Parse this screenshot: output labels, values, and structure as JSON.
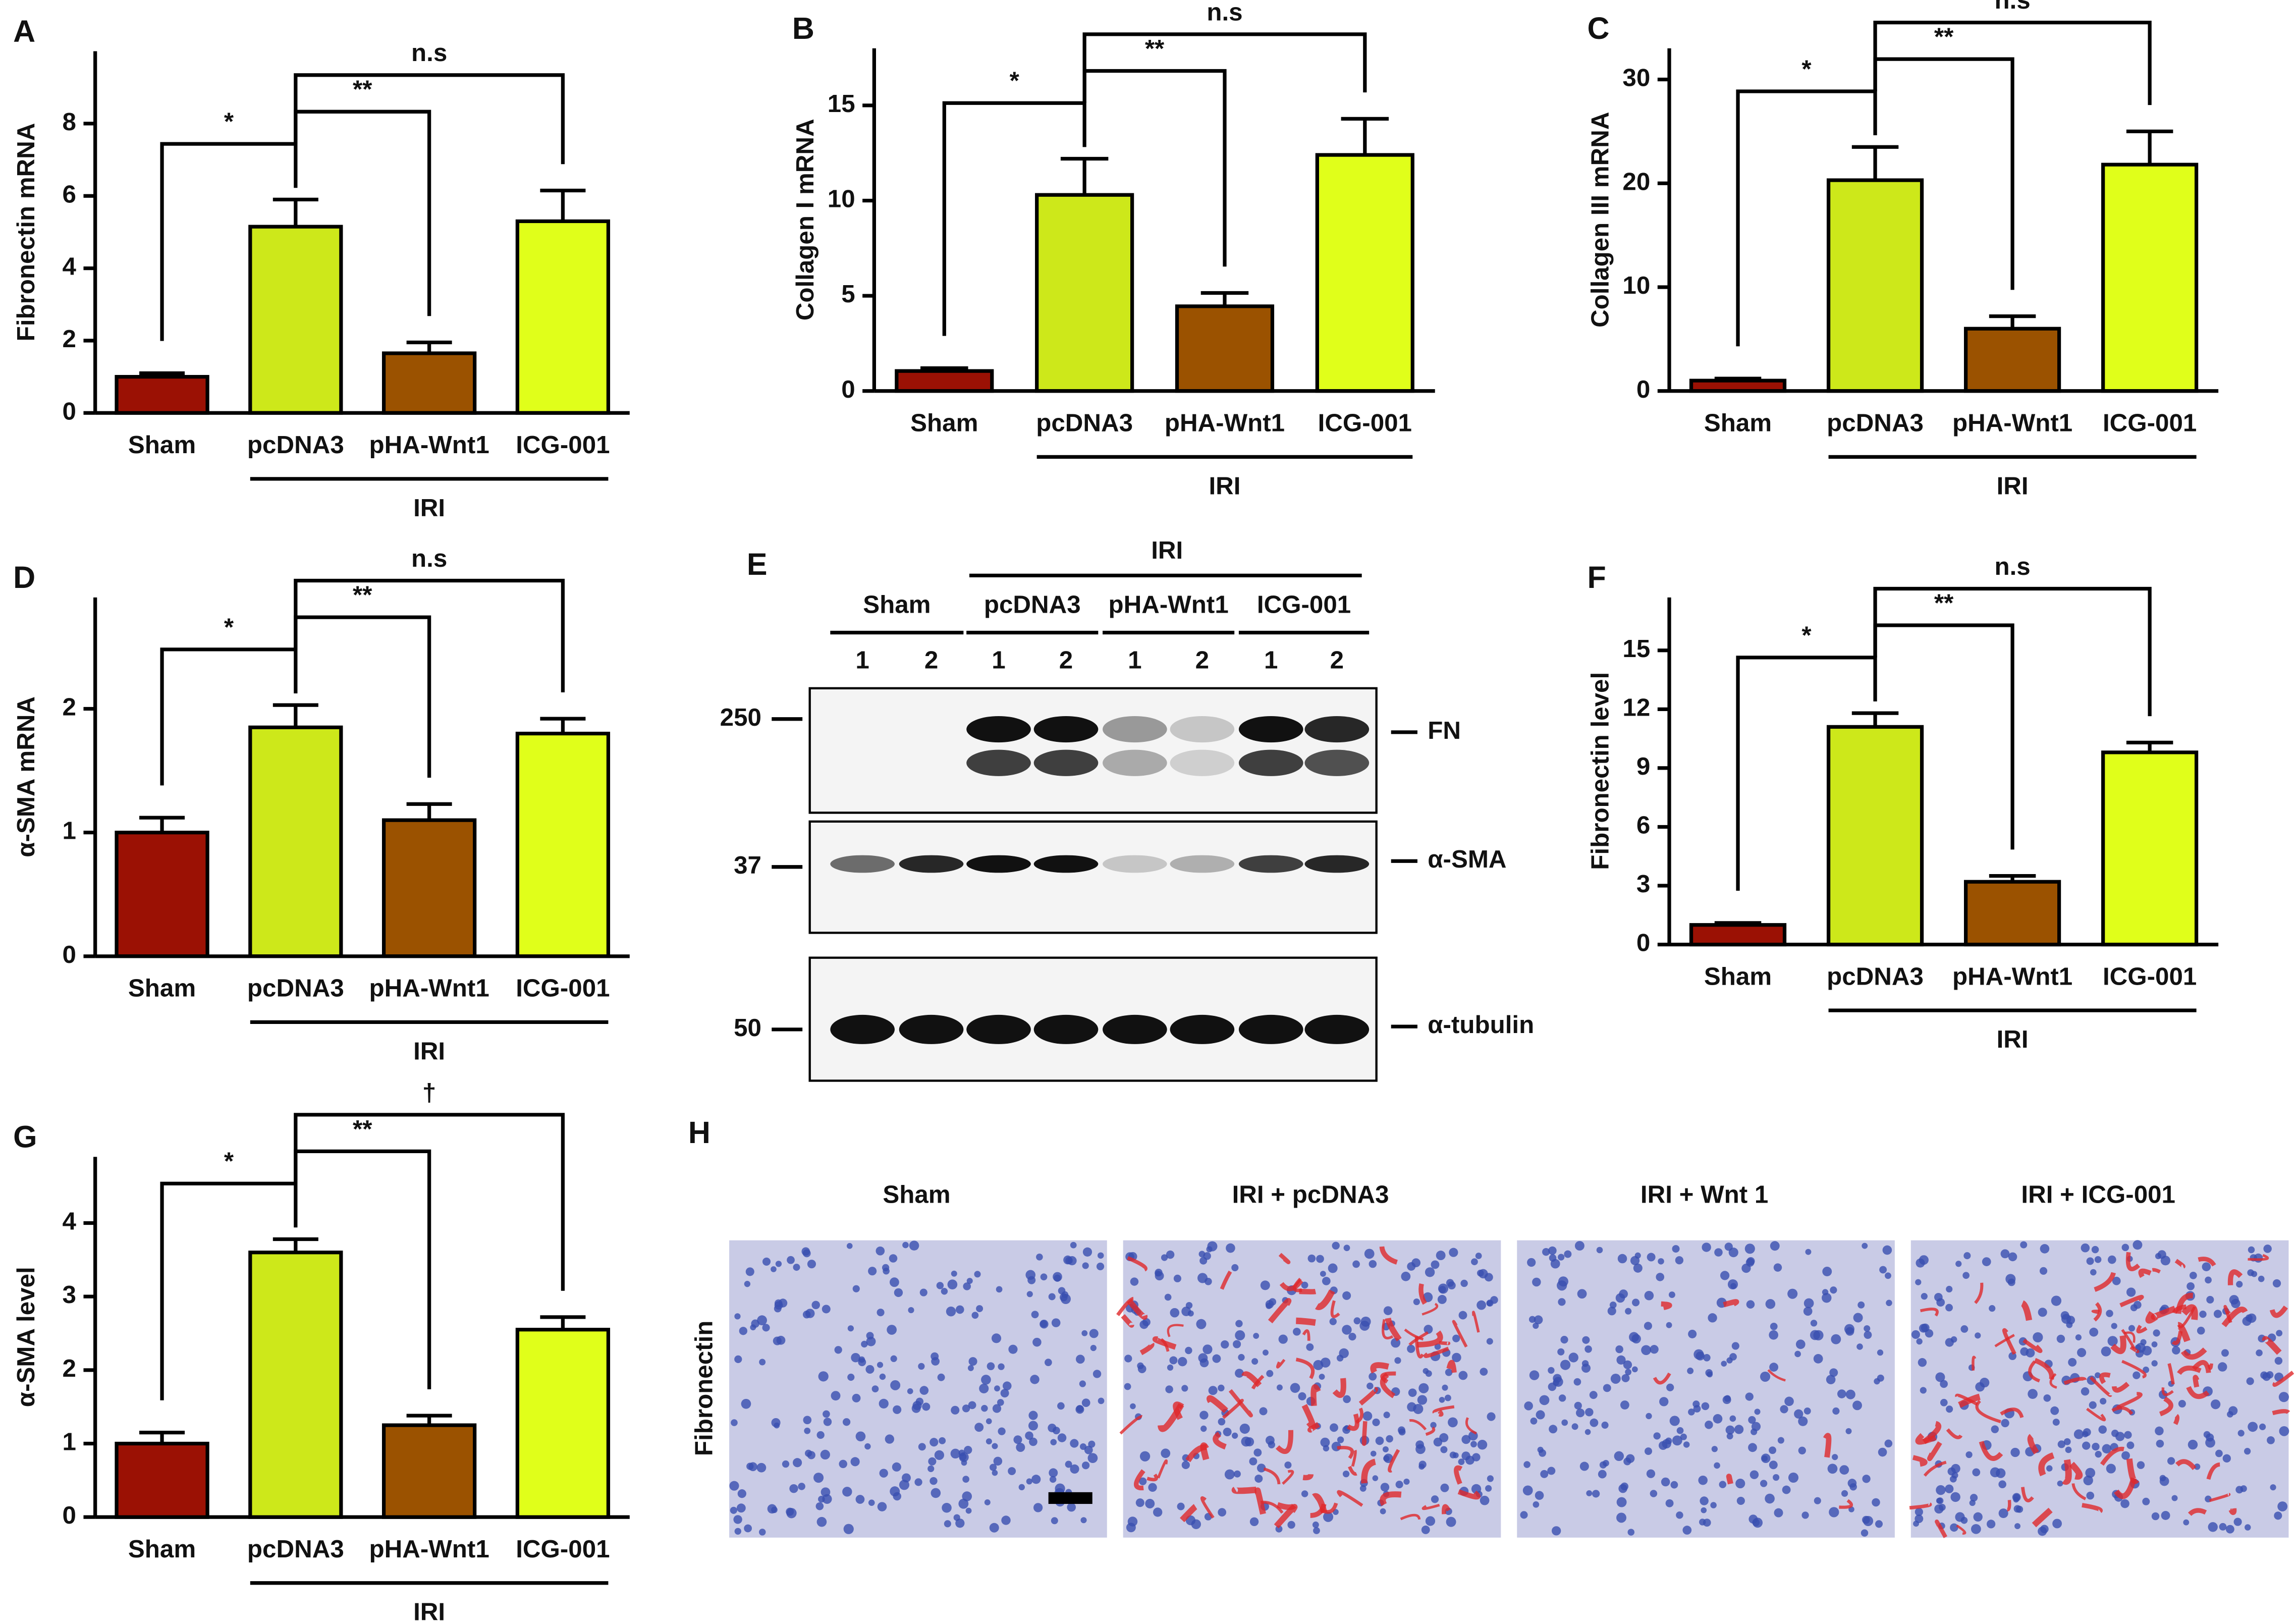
{
  "chart_data": [
    {
      "panel": "A",
      "type": "bar",
      "y_label": "Fibronectin mRNA",
      "categories": [
        "Sham",
        "pcDNA3",
        "pHA-Wnt1",
        "ICG-001"
      ],
      "group_label": "IRI",
      "values": [
        1.0,
        5.15,
        1.65,
        5.3
      ],
      "errors": [
        0.1,
        0.75,
        0.3,
        0.85
      ],
      "colors": [
        "#9b1104",
        "#cde81a",
        "#9b5200",
        "#e0ff1a"
      ],
      "ylim": [
        0,
        10
      ],
      "yticks": [
        0,
        2,
        4,
        6,
        8
      ],
      "significance": [
        "*",
        "**",
        "n.s"
      ]
    },
    {
      "panel": "B",
      "type": "bar",
      "y_label": "Collagen I mRNA",
      "categories": [
        "Sham",
        "pcDNA3",
        "pHA-Wnt1",
        "ICG-001"
      ],
      "group_label": "IRI",
      "values": [
        1.05,
        10.3,
        4.45,
        12.4
      ],
      "errors": [
        0.15,
        1.9,
        0.7,
        1.9
      ],
      "colors": [
        "#9b1104",
        "#cde81a",
        "#9b5200",
        "#e0ff1a"
      ],
      "ylim": [
        0,
        18
      ],
      "yticks": [
        0,
        5,
        10,
        15
      ],
      "significance": [
        "*",
        "**",
        "n.s"
      ]
    },
    {
      "panel": "C",
      "type": "bar",
      "y_label": "Collagen III mRNA",
      "categories": [
        "Sham",
        "pcDNA3",
        "pHA-Wnt1",
        "ICG-001"
      ],
      "group_label": "IRI",
      "values": [
        1.0,
        20.3,
        6.0,
        21.8
      ],
      "errors": [
        0.2,
        3.2,
        1.2,
        3.2
      ],
      "colors": [
        "#9b1104",
        "#cde81a",
        "#9b5200",
        "#e0ff1a"
      ],
      "ylim": [
        0,
        33
      ],
      "yticks": [
        0,
        10,
        20,
        30
      ],
      "significance": [
        "*",
        "**",
        "n.s"
      ]
    },
    {
      "panel": "D",
      "type": "bar",
      "y_label": "α-SMA mRNA",
      "categories": [
        "Sham",
        "pcDNA3",
        "pHA-Wnt1",
        "ICG-001"
      ],
      "group_label": "IRI",
      "values": [
        1.0,
        1.85,
        1.1,
        1.8
      ],
      "errors": [
        0.12,
        0.18,
        0.13,
        0.12
      ],
      "colors": [
        "#9b1104",
        "#cde81a",
        "#9b5200",
        "#e0ff1a"
      ],
      "ylim": [
        0,
        2.9
      ],
      "yticks": [
        0,
        1,
        2
      ],
      "significance": [
        "*",
        "**",
        "n.s"
      ]
    },
    {
      "panel": "F",
      "type": "bar",
      "y_label": "Fibronectin level",
      "categories": [
        "Sham",
        "pcDNA3",
        "pHA-Wnt1",
        "ICG-001"
      ],
      "group_label": "IRI",
      "values": [
        1.0,
        11.1,
        3.2,
        9.8
      ],
      "errors": [
        0.1,
        0.7,
        0.3,
        0.5
      ],
      "colors": [
        "#9b1104",
        "#cde81a",
        "#9b5200",
        "#e0ff1a"
      ],
      "ylim": [
        0,
        17.7
      ],
      "yticks": [
        0,
        3,
        6,
        9,
        12,
        15
      ],
      "significance": [
        "*",
        "**",
        "n.s"
      ]
    },
    {
      "panel": "G",
      "type": "bar",
      "y_label": "α-SMA level",
      "categories": [
        "Sham",
        "pcDNA3",
        "pHA-Wnt1",
        "ICG-001"
      ],
      "group_label": "IRI",
      "values": [
        1.0,
        3.6,
        1.25,
        2.55
      ],
      "errors": [
        0.15,
        0.18,
        0.13,
        0.17
      ],
      "colors": [
        "#9b1104",
        "#cde81a",
        "#9b5200",
        "#e0ff1a"
      ],
      "ylim": [
        0,
        4.9
      ],
      "yticks": [
        0,
        1,
        2,
        3,
        4
      ],
      "significance": [
        "*",
        "**",
        "†"
      ]
    }
  ],
  "blot": {
    "panel": "E",
    "group_label": "IRI",
    "groups": [
      "Sham",
      "pcDNA3",
      "pHA-Wnt1",
      "ICG-001"
    ],
    "lanes": [
      "1",
      "2",
      "1",
      "2",
      "1",
      "2",
      "1",
      "2"
    ],
    "markers": [
      "250",
      "37",
      "50"
    ],
    "bands": [
      "FN",
      "α-SMA",
      "α-tubulin"
    ]
  },
  "histology": {
    "panel": "H",
    "row_label": "Fibronectin",
    "columns": [
      "Sham",
      "IRI + pcDNA3",
      "IRI + Wnt 1",
      "IRI + ICG-001"
    ]
  }
}
